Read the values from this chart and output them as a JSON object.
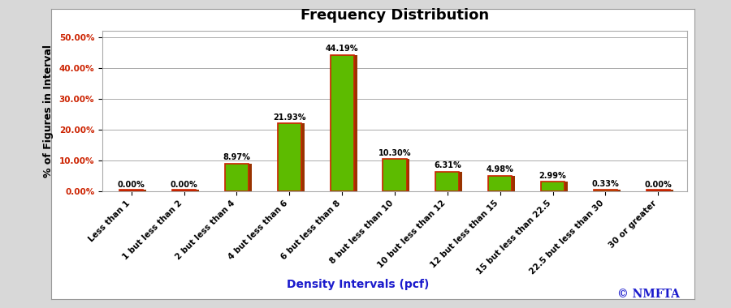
{
  "title": "Frequency Distribution",
  "xlabel": "Density Intervals (pcf)",
  "ylabel": "% of Figures in Interval",
  "copyright": "© NMFTA",
  "categories": [
    "Less than 1",
    "1 but less than 2",
    "2 but less than 4",
    "4 but less than 6",
    "6 but less than 8",
    "8 but less than 10",
    "10 but less than 12",
    "12 but less than 15",
    "15 but less than 22.5",
    "22.5 but less than 30",
    "30 or greater"
  ],
  "values": [
    0.0,
    0.0,
    8.97,
    21.93,
    44.19,
    10.3,
    6.31,
    4.98,
    2.99,
    0.33,
    0.0
  ],
  "labels": [
    "0.00%",
    "0.00%",
    "8.97%",
    "21.93%",
    "44.19%",
    "10.30%",
    "6.31%",
    "4.98%",
    "2.99%",
    "0.33%",
    "0.00%"
  ],
  "bar_color": "#5DBB00",
  "bar_edge_color": "#CC2200",
  "bar_edge_linewidth": 1.2,
  "shadow_color": "#993300",
  "ylim": [
    0,
    52
  ],
  "yticks": [
    0,
    10,
    20,
    30,
    40,
    50
  ],
  "ytick_labels": [
    "0.00%",
    "10.00%",
    "20.00%",
    "30.00%",
    "40.00%",
    "50.00%"
  ],
  "title_fontsize": 13,
  "title_fontweight": "bold",
  "xlabel_fontsize": 10,
  "ylabel_fontsize": 9,
  "label_fontsize": 7,
  "tick_fontsize": 7.5,
  "xlabel_color": "#1a1aCC",
  "copyright_color": "#1a1aCC",
  "ytick_color": "#CC2200",
  "xtick_color": "#000000",
  "background_color": "#ffffff",
  "panel_bg": "#ffffff",
  "outer_bg": "#d8d8d8",
  "grid_color": "#aaaaaa",
  "bar_width": 0.45
}
